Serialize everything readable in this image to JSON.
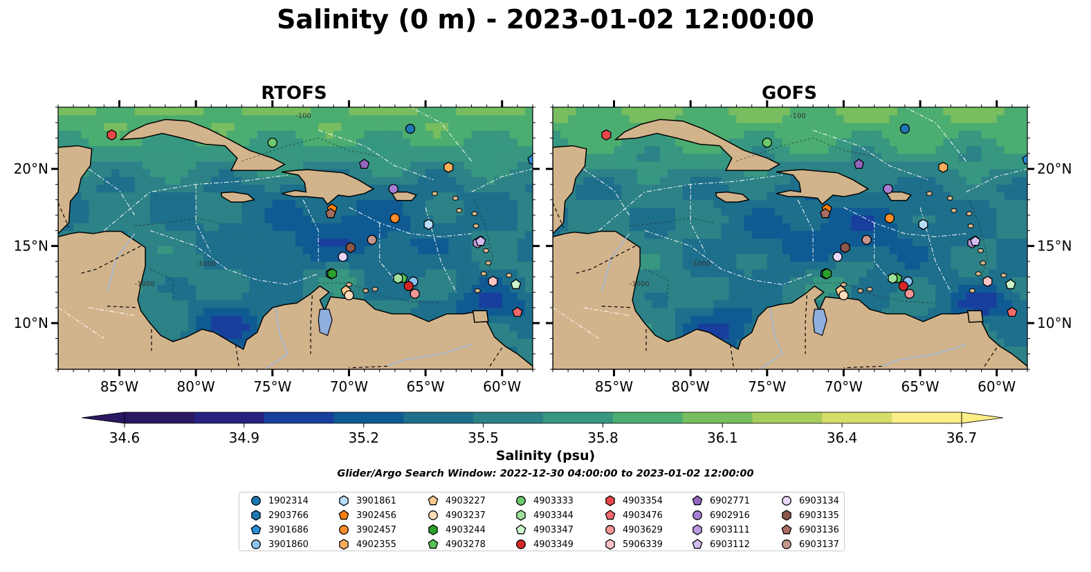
{
  "figure": {
    "suptitle": "Salinity (0 m) - 2023-01-02 12:00:00",
    "search_window": "Glider/Argo Search Window: 2022-12-30 04:00:00 to 2023-01-02 12:00:00"
  },
  "chart_data": [
    {
      "type": "heatmap",
      "title": "RTOFS",
      "variable": "Salinity (0 m)",
      "xlim": [
        -89,
        -58
      ],
      "ylim": [
        7,
        24
      ],
      "xticks": [
        -85,
        -80,
        -75,
        -70,
        -65,
        -60
      ],
      "yticks": [
        10,
        15,
        20
      ],
      "xticklabels": [
        "85°W",
        "80°W",
        "75°W",
        "70°W",
        "65°W",
        "60°W"
      ],
      "yticklabels": [
        "10°N",
        "15°N",
        "20°N"
      ],
      "ytick_side": "left",
      "field_summary": "Mid-basin Caribbean values ~35.3-35.6 psu; fresher water (<35.0) near Orinoco/Colombia coasts; saltier (>36.3) north of Greater Antilles",
      "contour_labels": [
        "-100",
        "-1000"
      ]
    },
    {
      "type": "heatmap",
      "title": "GOFS",
      "variable": "Salinity (0 m)",
      "xlim": [
        -89,
        -58
      ],
      "ylim": [
        7,
        24
      ],
      "xticks": [
        -85,
        -80,
        -75,
        -70,
        -65,
        -60
      ],
      "yticks": [
        10,
        15,
        20
      ],
      "xticklabels": [
        "85°W",
        "80°W",
        "75°W",
        "70°W",
        "65°W",
        "60°W"
      ],
      "yticklabels": [
        "10°N",
        "15°N",
        "20°N"
      ],
      "ytick_side": "right",
      "field_summary": "Mid-basin Caribbean values ~35.2-35.5 psu; fresher water near Orinoco plume and Central America coast",
      "contour_labels": [
        "-100",
        "-1000"
      ]
    }
  ],
  "colorbar": {
    "label": "Salinity (psu)",
    "min": 34.6,
    "max": 36.7,
    "ticks": [
      "34.6",
      "34.9",
      "35.2",
      "35.5",
      "35.8",
      "36.1",
      "36.4",
      "36.7"
    ],
    "extend": "both",
    "colormap": "haline",
    "colors": [
      "#2a1862",
      "#25217f",
      "#183f9d",
      "#0f5a93",
      "#1d6f8c",
      "#2c8286",
      "#379780",
      "#4cad71",
      "#78bd5f",
      "#a6cc5c",
      "#d6dd69",
      "#fbed87"
    ]
  },
  "land_color": "#d2b48c",
  "lake_color": "#8fb0de",
  "floats": [
    {
      "id": "1902314",
      "marker": "circle",
      "color": "#1f77b4",
      "lon": -66.0,
      "lat": 22.6
    },
    {
      "id": "2903766",
      "marker": "hexagon",
      "color": "#1f77b4",
      "lon": -71.2,
      "lat": 13.2
    },
    {
      "id": "3901686",
      "marker": "pentagon",
      "color": "#2a8ed8",
      "lon": -58.0,
      "lat": 20.6
    },
    {
      "id": "3901860",
      "marker": "circle",
      "color": "#8cc2f0",
      "lon": -65.8,
      "lat": 12.7
    },
    {
      "id": "3901861",
      "marker": "hexagon",
      "color": "#b8ddfa",
      "lon": -64.8,
      "lat": 16.4
    },
    {
      "id": "3902456",
      "marker": "pentagon",
      "color": "#ff7f0e",
      "lon": -71.1,
      "lat": 17.4
    },
    {
      "id": "3902457",
      "marker": "circle",
      "color": "#ff8d2a",
      "lon": -67.0,
      "lat": 16.8
    },
    {
      "id": "4902355",
      "marker": "hexagon",
      "color": "#ffad5c",
      "lon": -63.5,
      "lat": 20.1
    },
    {
      "id": "4903227",
      "marker": "pentagon",
      "color": "#ffc98f",
      "lon": -70.2,
      "lat": 12.1
    },
    {
      "id": "4903237",
      "marker": "circle",
      "color": "#ffdbbb",
      "lon": -70.0,
      "lat": 11.8
    },
    {
      "id": "4903244",
      "marker": "hexagon",
      "color": "#2ca02c",
      "lon": -71.1,
      "lat": 13.2
    },
    {
      "id": "4903278",
      "marker": "pentagon",
      "color": "#57c257",
      "lon": -66.5,
      "lat": 12.9
    },
    {
      "id": "4903333",
      "marker": "circle",
      "color": "#6dc96d",
      "lon": -75.0,
      "lat": 21.7
    },
    {
      "id": "4903344",
      "marker": "hexagon",
      "color": "#9fe09f",
      "lon": -66.8,
      "lat": 12.9
    },
    {
      "id": "4903347",
      "marker": "pentagon",
      "color": "#ccf5cc",
      "lon": -59.1,
      "lat": 12.5
    },
    {
      "id": "4903349",
      "marker": "circle",
      "color": "#d62728",
      "lon": -66.1,
      "lat": 12.4
    },
    {
      "id": "4903354",
      "marker": "hexagon",
      "color": "#e8474a",
      "lon": -85.5,
      "lat": 22.2
    },
    {
      "id": "4903476",
      "marker": "pentagon",
      "color": "#f06a6c",
      "lon": -59.0,
      "lat": 10.7
    },
    {
      "id": "4903629",
      "marker": "circle",
      "color": "#f49596",
      "lon": -65.7,
      "lat": 11.9
    },
    {
      "id": "5906339",
      "marker": "hexagon",
      "color": "#fbc3c3",
      "lon": -60.6,
      "lat": 12.7
    },
    {
      "id": "6902771",
      "marker": "pentagon",
      "color": "#9467bd",
      "lon": -69.0,
      "lat": 20.3
    },
    {
      "id": "6902916",
      "marker": "circle",
      "color": "#a77fd4",
      "lon": -67.1,
      "lat": 18.7
    },
    {
      "id": "6903111",
      "marker": "hexagon",
      "color": "#bb9ae0",
      "lon": -61.6,
      "lat": 15.2
    },
    {
      "id": "6903112",
      "marker": "pentagon",
      "color": "#d3bdf0",
      "lon": -61.4,
      "lat": 15.3
    },
    {
      "id": "6903134",
      "marker": "circle",
      "color": "#e8d7f8",
      "lon": -70.4,
      "lat": 14.3
    },
    {
      "id": "6903135",
      "marker": "hexagon",
      "color": "#8c564b",
      "lon": -69.9,
      "lat": 14.9
    },
    {
      "id": "6903136",
      "marker": "pentagon",
      "color": "#a86d61",
      "lon": -71.2,
      "lat": 17.1
    },
    {
      "id": "6903137",
      "marker": "circle",
      "color": "#c4968d",
      "lon": -68.5,
      "lat": 15.4
    }
  ]
}
